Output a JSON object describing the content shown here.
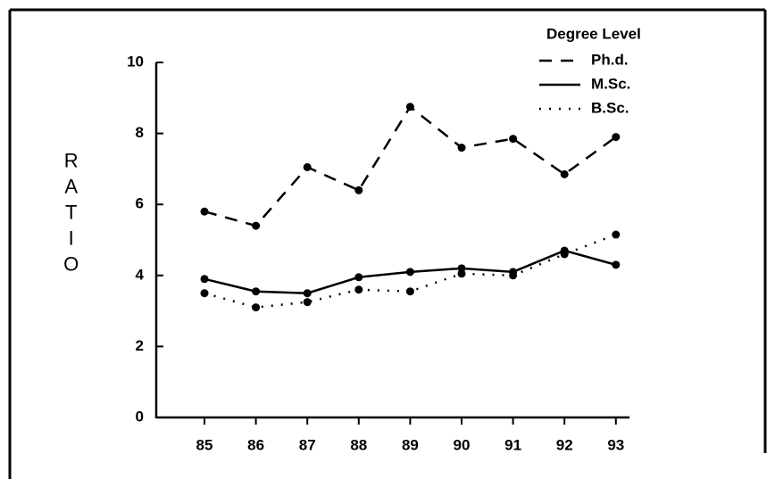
{
  "chart_data": {
    "type": "line",
    "y_label": "RATIO",
    "legend_title": "Degree Level",
    "legend_position": "upper right",
    "categories": [
      "85",
      "86",
      "87",
      "88",
      "89",
      "90",
      "91",
      "92",
      "93"
    ],
    "series": [
      {
        "name": "Ph.d.",
        "color": "#000000",
        "dash": "dashed",
        "values": [
          5.8,
          5.4,
          7.05,
          6.4,
          8.75,
          7.6,
          7.85,
          6.85,
          7.9
        ]
      },
      {
        "name": "M.Sc.",
        "color": "#000000",
        "dash": "solid",
        "values": [
          3.9,
          3.55,
          3.5,
          3.95,
          4.1,
          4.2,
          4.1,
          4.7,
          4.3
        ]
      },
      {
        "name": "B.Sc.",
        "color": "#000000",
        "dash": "dotted",
        "values": [
          3.5,
          3.1,
          3.25,
          3.6,
          3.55,
          4.05,
          4.0,
          4.6,
          5.15
        ]
      }
    ],
    "ylim": [
      0,
      10
    ],
    "yticks": [
      0,
      2,
      4,
      6,
      8,
      10
    ]
  }
}
